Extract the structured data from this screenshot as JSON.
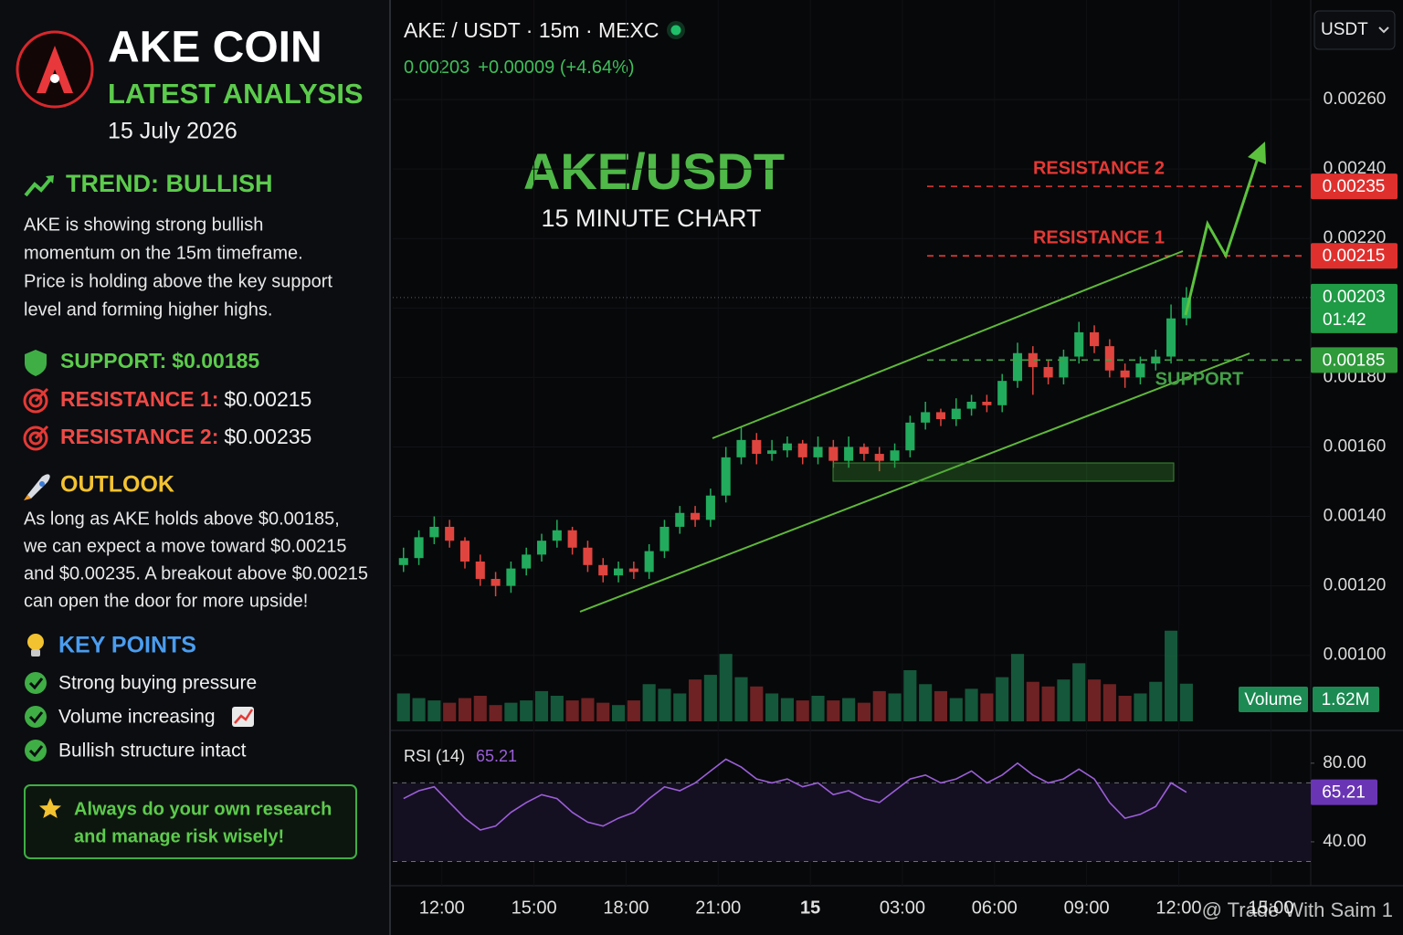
{
  "sidebar": {
    "title": "AKE COIN",
    "subtitle": "LATEST ANALYSIS",
    "date": "15 July 2026",
    "trend": {
      "heading": "TREND: BULLISH",
      "lines": [
        "AKE is showing strong bullish",
        "momentum on the 15m timeframe.",
        "Price is holding above the key support",
        "level and forming higher highs."
      ]
    },
    "levels": [
      {
        "label": "SUPPORT:",
        "value": "$0.00185"
      },
      {
        "label": "RESISTANCE 1:",
        "value": "$0.00215"
      },
      {
        "label": "RESISTANCE 2:",
        "value": "$0.00235"
      }
    ],
    "outlook": {
      "heading": "OUTLOOK",
      "lines": [
        "As long as AKE holds above $0.00185,",
        "we can expect a move toward $0.00215",
        "and $0.00235. A breakout above $0.00215",
        "can open the door for more upside!"
      ]
    },
    "key_points": {
      "heading": "KEY POINTS",
      "items": [
        "Strong buying pressure",
        "Volume increasing",
        "Bullish structure intact"
      ]
    },
    "note": [
      "Always do your own research",
      "and manage risk wisely!"
    ]
  },
  "header": {
    "symbol": "AKE / USDT · 15m · MEXC",
    "price": "0.00203",
    "change": "+0.00009 (+4.64%)",
    "currency": "USDT"
  },
  "watermark": "@ Trade With Saim 1",
  "chart_data": {
    "type": "candlestick",
    "title": "AKE/USDT",
    "subtitle": "15 MINUTE CHART",
    "up_color": "#22ab5c",
    "down_color": "#e0443e",
    "x": [
      10.75,
      11.25,
      11.75,
      12.25,
      12.75,
      13.25,
      13.75,
      14.25,
      14.75,
      15.25,
      15.75,
      16.25,
      16.75,
      17.25,
      17.75,
      18.25,
      18.75,
      19.25,
      19.75,
      20.25,
      20.75,
      21.25,
      21.75,
      22.25,
      22.75,
      23.25,
      23.75,
      24.25,
      24.75,
      25.25,
      25.75,
      26.25,
      26.75,
      27.25,
      27.75,
      28.25,
      28.75,
      29.25,
      29.75,
      30.25,
      30.75,
      31.25,
      31.75,
      32.25,
      32.75,
      33.25,
      33.75,
      34.25,
      34.75,
      35.25,
      35.75,
      36.25
    ],
    "open": [
      0.00126,
      0.00128,
      0.00134,
      0.00137,
      0.00133,
      0.00127,
      0.00122,
      0.0012,
      0.00125,
      0.00129,
      0.00133,
      0.00136,
      0.00131,
      0.00126,
      0.00123,
      0.00125,
      0.00124,
      0.0013,
      0.00137,
      0.00141,
      0.00139,
      0.00146,
      0.00157,
      0.00162,
      0.00158,
      0.00159,
      0.00161,
      0.00157,
      0.0016,
      0.00156,
      0.0016,
      0.00158,
      0.00156,
      0.00159,
      0.00167,
      0.0017,
      0.00168,
      0.00171,
      0.00173,
      0.00172,
      0.00179,
      0.00187,
      0.00183,
      0.0018,
      0.00186,
      0.00193,
      0.00189,
      0.00182,
      0.0018,
      0.00184,
      0.00186,
      0.00197
    ],
    "high": [
      0.00131,
      0.00136,
      0.0014,
      0.00139,
      0.00134,
      0.00129,
      0.00124,
      0.00127,
      0.00131,
      0.00135,
      0.00139,
      0.00137,
      0.00133,
      0.00128,
      0.00127,
      0.00127,
      0.00132,
      0.00139,
      0.00143,
      0.00143,
      0.00148,
      0.0016,
      0.00166,
      0.00164,
      0.00162,
      0.00163,
      0.00162,
      0.00163,
      0.00162,
      0.00163,
      0.00161,
      0.0016,
      0.00161,
      0.00169,
      0.00173,
      0.00171,
      0.00174,
      0.00175,
      0.00175,
      0.00181,
      0.0019,
      0.00189,
      0.00185,
      0.00188,
      0.00196,
      0.00195,
      0.00191,
      0.00184,
      0.00186,
      0.00188,
      0.00201,
      0.00206
    ],
    "low": [
      0.00124,
      0.00126,
      0.00132,
      0.00131,
      0.00125,
      0.0012,
      0.00117,
      0.00118,
      0.00123,
      0.00127,
      0.00131,
      0.00129,
      0.00124,
      0.00121,
      0.00121,
      0.00122,
      0.00122,
      0.00128,
      0.00135,
      0.00137,
      0.00137,
      0.00144,
      0.00155,
      0.00155,
      0.00156,
      0.00157,
      0.00155,
      0.00155,
      0.00154,
      0.00154,
      0.00156,
      0.00153,
      0.00154,
      0.00157,
      0.00165,
      0.00166,
      0.00166,
      0.00169,
      0.0017,
      0.0017,
      0.00177,
      0.00175,
      0.00178,
      0.00178,
      0.00184,
      0.00187,
      0.0018,
      0.00177,
      0.00178,
      0.00182,
      0.00184,
      0.00195
    ],
    "close": [
      0.00128,
      0.00134,
      0.00137,
      0.00133,
      0.00127,
      0.00122,
      0.0012,
      0.00125,
      0.00129,
      0.00133,
      0.00136,
      0.00131,
      0.00126,
      0.00123,
      0.00125,
      0.00124,
      0.0013,
      0.00137,
      0.00141,
      0.00139,
      0.00146,
      0.00157,
      0.00162,
      0.00158,
      0.00159,
      0.00161,
      0.00157,
      0.0016,
      0.00156,
      0.0016,
      0.00158,
      0.00156,
      0.00159,
      0.00167,
      0.0017,
      0.00168,
      0.00171,
      0.00173,
      0.00172,
      0.00179,
      0.00187,
      0.00183,
      0.0018,
      0.00186,
      0.00193,
      0.00189,
      0.00182,
      0.0018,
      0.00184,
      0.00186,
      0.00197,
      0.00203
    ],
    "countdown": "01:42",
    "xlim": [
      10.4,
      40.3
    ],
    "xticks": [
      {
        "value": 12,
        "label": "12:00"
      },
      {
        "value": 15,
        "label": "15:00"
      },
      {
        "value": 18,
        "label": "18:00"
      },
      {
        "value": 21,
        "label": "21:00"
      },
      {
        "value": 24,
        "label": "15",
        "bold": true
      },
      {
        "value": 27,
        "label": "03:00"
      },
      {
        "value": 30,
        "label": "06:00"
      },
      {
        "value": 33,
        "label": "09:00"
      },
      {
        "value": 36,
        "label": "12:00"
      },
      {
        "value": 39,
        "label": "15:00"
      }
    ],
    "ylim": [
      0.00081,
      0.00265
    ],
    "yticks": [
      {
        "value": 0.0026,
        "label": "0.00260"
      },
      {
        "value": 0.0024,
        "label": "0.00240"
      },
      {
        "value": 0.0022,
        "label": "0.00220"
      },
      {
        "value": 0.002,
        "label": "0.00200"
      },
      {
        "value": 0.0018,
        "label": "0.00180"
      },
      {
        "value": 0.0016,
        "label": "0.00160"
      },
      {
        "value": 0.0014,
        "label": "0.00140"
      },
      {
        "value": 0.0012,
        "label": "0.00120"
      },
      {
        "value": 0.001,
        "label": "0.00100"
      }
    ],
    "levels": [
      {
        "name": "RESISTANCE 2",
        "value": 0.00235,
        "color": "#e53935",
        "label_position": "above"
      },
      {
        "name": "RESISTANCE 1",
        "value": 0.00215,
        "color": "#e53935",
        "label_position": "above"
      },
      {
        "name": "SUPPORT",
        "value": 0.00185,
        "color": "#43a047",
        "label_position": "below"
      }
    ],
    "volume": {
      "name": "Volume",
      "ylim": [
        0,
        4.4
      ],
      "values": [
        1.2,
        1.0,
        0.9,
        0.8,
        1.0,
        1.1,
        0.7,
        0.8,
        0.9,
        1.3,
        1.1,
        0.9,
        1.0,
        0.8,
        0.7,
        0.9,
        1.6,
        1.4,
        1.2,
        1.8,
        2.0,
        2.9,
        1.9,
        1.5,
        1.2,
        1.0,
        0.9,
        1.1,
        0.9,
        1.0,
        0.8,
        1.3,
        1.2,
        2.2,
        1.6,
        1.3,
        1.0,
        1.4,
        1.2,
        1.9,
        2.9,
        1.7,
        1.5,
        1.8,
        2.5,
        1.8,
        1.6,
        1.1,
        1.2,
        1.7,
        3.9,
        1.62
      ],
      "last_label": "1.62M"
    },
    "rsi": {
      "name": "RSI (14)",
      "color": "#9b5fd8",
      "ylim": [
        20,
        92
      ],
      "yticks": [
        {
          "value": 80,
          "label": "80.00"
        },
        {
          "value": 40,
          "label": "40.00"
        }
      ],
      "bands": [
        70,
        30
      ],
      "values": [
        62,
        66,
        68,
        60,
        52,
        46,
        48,
        55,
        60,
        64,
        62,
        55,
        50,
        48,
        52,
        55,
        62,
        68,
        66,
        70,
        76,
        82,
        78,
        72,
        70,
        72,
        68,
        70,
        64,
        66,
        62,
        60,
        66,
        72,
        74,
        70,
        72,
        76,
        70,
        74,
        80,
        74,
        70,
        72,
        77,
        72,
        60,
        52,
        54,
        58,
        70,
        65.21
      ]
    }
  }
}
